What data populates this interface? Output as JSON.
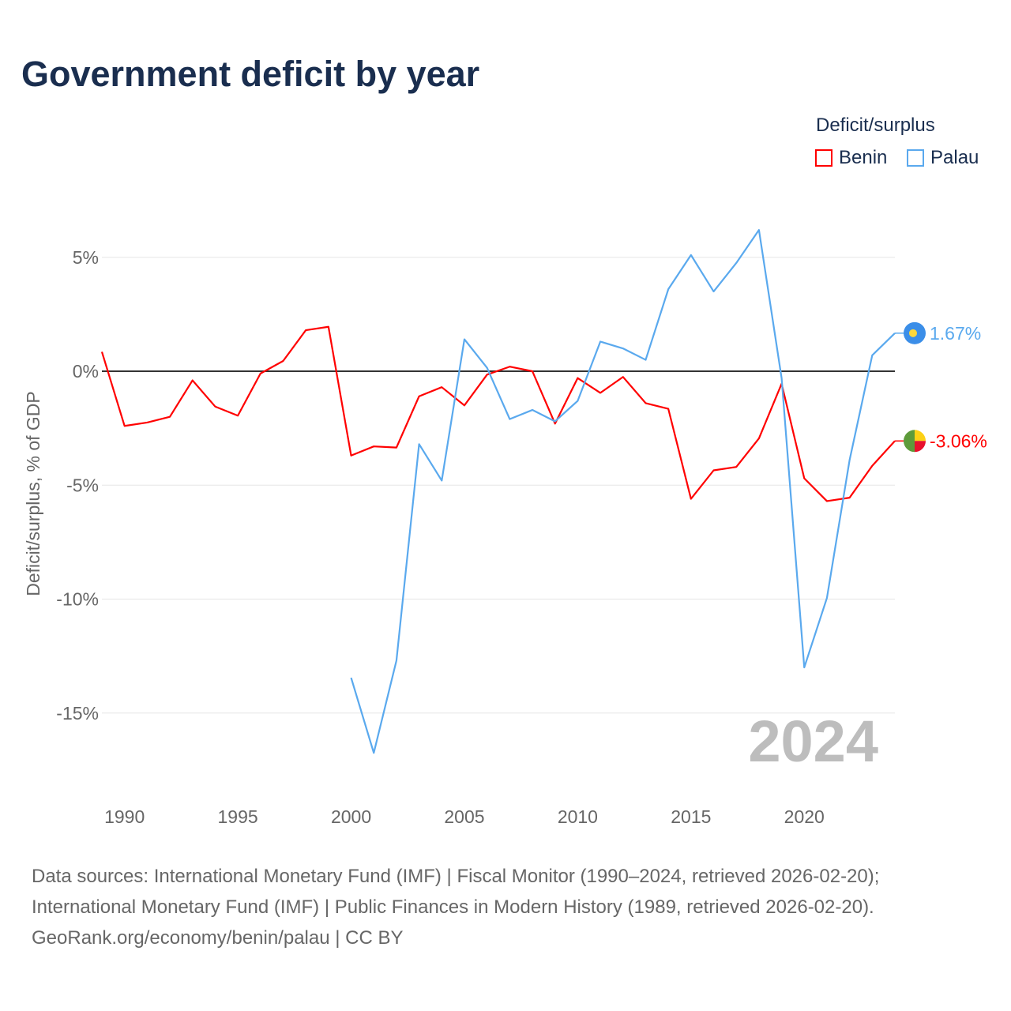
{
  "chart_data": {
    "type": "line",
    "title": "Government deficit by year",
    "xlabel": "",
    "ylabel": "Deficit/surplus, % of GDP",
    "xlim": [
      1989,
      2024
    ],
    "ylim": [
      -17.5,
      7.5
    ],
    "x_ticks": [
      "1990",
      "1995",
      "2000",
      "2005",
      "2010",
      "2015",
      "2020"
    ],
    "y_ticks": [
      {
        "v": 5,
        "label": "5%"
      },
      {
        "v": 0,
        "label": "0%"
      },
      {
        "v": -5,
        "label": "-5%"
      },
      {
        "v": -10,
        "label": "-10%"
      },
      {
        "v": -15,
        "label": "-15%"
      }
    ],
    "legend_title": "Deficit/surplus",
    "legend_position": "top-right",
    "year_watermark": "2024",
    "series": [
      {
        "name": "Benin",
        "color": "#ff0000",
        "start": 1989,
        "values": [
          0.85,
          -2.4,
          -2.25,
          -2.0,
          -0.4,
          -1.55,
          -1.95,
          -0.1,
          0.45,
          1.8,
          1.95,
          -3.7,
          -3.3,
          -3.35,
          -1.1,
          -0.7,
          -1.5,
          -0.15,
          0.2,
          0.0,
          -2.3,
          -0.3,
          -0.95,
          -0.25,
          -1.4,
          -1.65,
          -5.6,
          -4.35,
          -4.2,
          -2.95,
          -0.55,
          -4.7,
          -5.7,
          -5.55,
          -4.15,
          -3.06
        ],
        "end_label": "-3.06%"
      },
      {
        "name": "Palau",
        "color": "#5aa9ee",
        "start": 2000,
        "values": [
          -13.45,
          -16.75,
          -12.7,
          -3.2,
          -4.8,
          1.4,
          0.15,
          -2.1,
          -1.7,
          -2.2,
          -1.3,
          1.3,
          1.0,
          0.5,
          3.6,
          5.1,
          3.5,
          4.75,
          6.2,
          -0.3,
          -13.0,
          -9.95,
          -3.9,
          0.7,
          1.67
        ],
        "end_label": "1.67%"
      }
    ]
  },
  "footer": {
    "line1": "Data sources: International Monetary Fund (IMF) | Fiscal Monitor (1990–2024, retrieved 2026-02-20);",
    "line2": "International Monetary Fund (IMF) | Public Finances in Modern History (1989, retrieved 2026-02-20).",
    "line3": "GeoRank.org/economy/benin/palau | CC BY"
  }
}
